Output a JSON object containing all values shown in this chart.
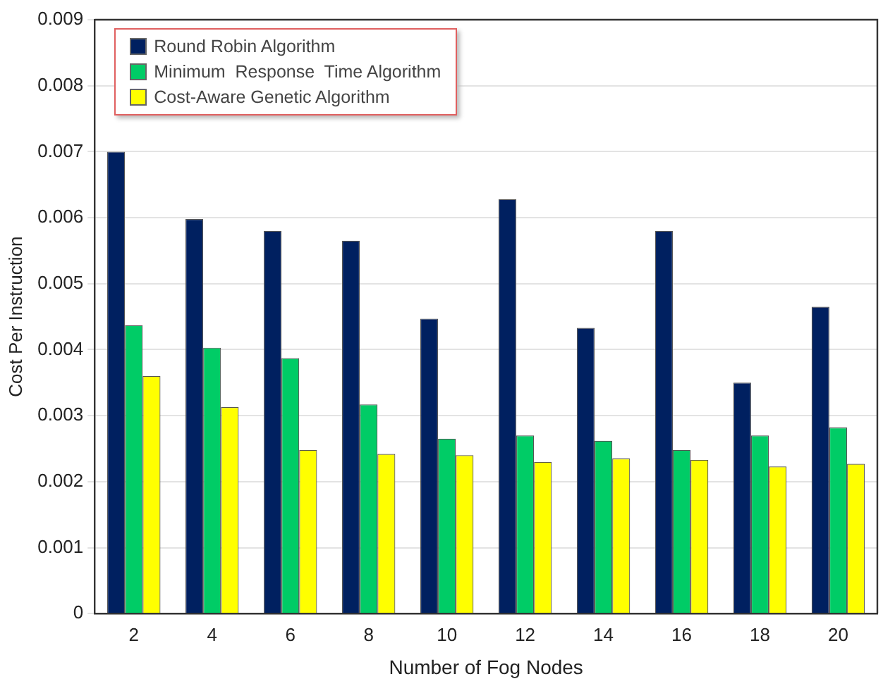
{
  "chart_data": {
    "type": "bar",
    "xlabel": "Number of Fog Nodes",
    "ylabel": "Cost Per Instruction",
    "categories": [
      "2",
      "4",
      "6",
      "8",
      "10",
      "12",
      "14",
      "16",
      "18",
      "20"
    ],
    "series": [
      {
        "name": "Round Robin Algorithm",
        "color": "#002060",
        "values": [
          0.007,
          0.00598,
          0.0058,
          0.00565,
          0.00447,
          0.00628,
          0.00433,
          0.0058,
          0.0035,
          0.00465
        ]
      },
      {
        "name": "Minimum  Response  Time Algorithm",
        "color": "#00cc66",
        "values": [
          0.00437,
          0.00403,
          0.00387,
          0.00317,
          0.00265,
          0.0027,
          0.00262,
          0.00248,
          0.0027,
          0.00282
        ]
      },
      {
        "name": "Cost-Aware Genetic Algorithm",
        "color": "#ffff00",
        "values": [
          0.0036,
          0.00313,
          0.00248,
          0.00242,
          0.0024,
          0.0023,
          0.00235,
          0.00233,
          0.00223,
          0.00227
        ]
      }
    ],
    "ylim": [
      0,
      0.009
    ],
    "yticks": [
      0,
      0.001,
      0.002,
      0.003,
      0.004,
      0.005,
      0.006,
      0.007,
      0.008,
      0.009
    ],
    "grid": "y",
    "legend": "top left"
  }
}
